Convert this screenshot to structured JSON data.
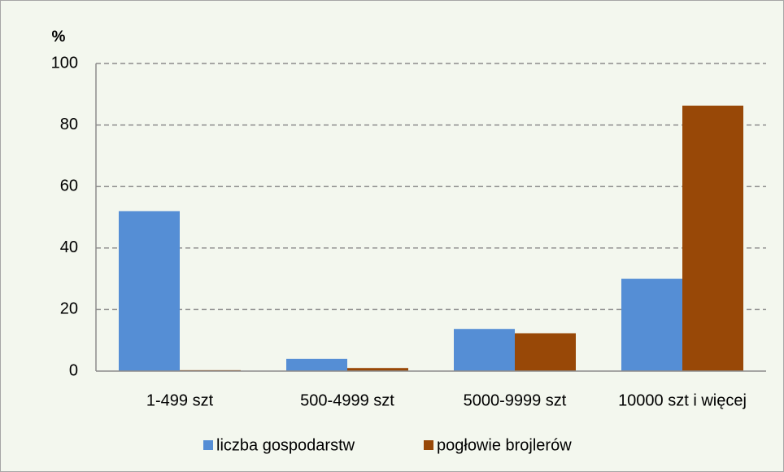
{
  "chart_data": {
    "type": "bar",
    "y_label": "%",
    "categories": [
      "1-499 szt",
      "500-4999 szt",
      "5000-9999 szt",
      "10000 szt i więcej"
    ],
    "series": [
      {
        "name": "liczba gospodarstw",
        "color": "#558ed5",
        "values": [
          52,
          4,
          13.7,
          30
        ]
      },
      {
        "name": "pogłowie brojlerów",
        "color": "#984807",
        "values": [
          0.3,
          1,
          12.3,
          86.3
        ]
      }
    ],
    "ylim": [
      0,
      100
    ],
    "yticks": [
      0,
      20,
      40,
      60,
      80,
      100
    ],
    "grid": true,
    "legend": "bottom"
  }
}
